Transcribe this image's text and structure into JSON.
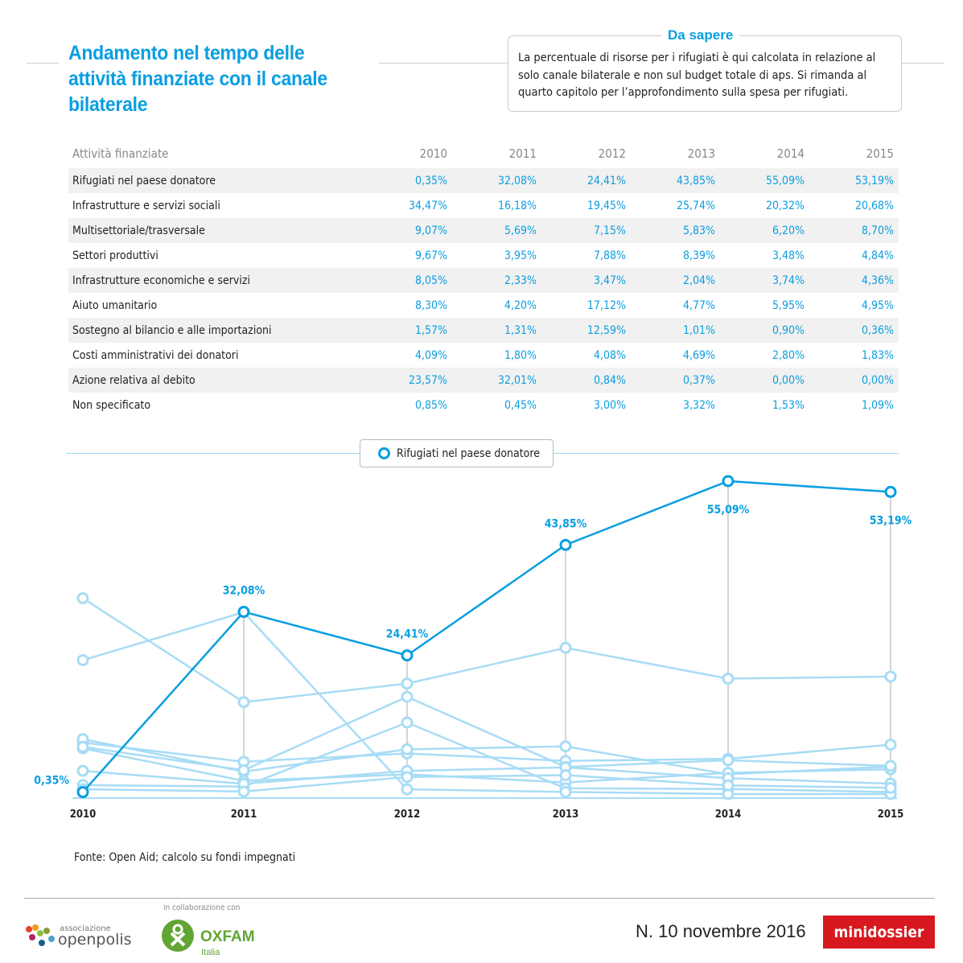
{
  "header": {
    "title": "Andamento nel tempo delle attività finanziate con il canale bilaterale",
    "note_title": "Da sapere",
    "note_text": "La percentuale di risorse per i rifugiati è qui calcolata in relazione al solo canale bilaterale e non sul budget totale di aps. Si rimanda al quarto capitolo per l’approfondimento sulla spesa per rifugiati."
  },
  "table": {
    "header": [
      "Attività finanziate",
      "2010",
      "2011",
      "2012",
      "2013",
      "2014",
      "2015"
    ],
    "rows": [
      [
        "Rifugiati nel paese donatore",
        "0,35%",
        "32,08%",
        "24,41%",
        "43,85%",
        "55,09%",
        "53,19%"
      ],
      [
        "Infrastrutture e servizi sociali",
        "34,47%",
        "16,18%",
        "19,45%",
        "25,74%",
        "20,32%",
        "20,68%"
      ],
      [
        "Multisettoriale/trasversale",
        "9,07%",
        "5,69%",
        "7,15%",
        "5,83%",
        "6,20%",
        "8,70%"
      ],
      [
        "Settori produttivi",
        "9,67%",
        "3,95%",
        "7,88%",
        "8,39%",
        "3,48%",
        "4,84%"
      ],
      [
        "Infrastrutture economiche e servizi",
        "8,05%",
        "2,33%",
        "3,47%",
        "2,04%",
        "3,74%",
        "4,36%"
      ],
      [
        "Aiuto umanitario",
        "8,30%",
        "4,20%",
        "17,12%",
        "4,77%",
        "5,95%",
        "4,95%"
      ],
      [
        "Sostegno al bilancio e alle importazioni",
        "1,57%",
        "1,31%",
        "12,59%",
        "1,01%",
        "0,90%",
        "0,36%"
      ],
      [
        "Costi amministrativi dei donatori",
        "4,09%",
        "1,80%",
        "4,08%",
        "4,69%",
        "2,80%",
        "1,83%"
      ],
      [
        "Azione relativa al debito",
        "23,57%",
        "32,01%",
        "0,84%",
        "0,37%",
        "0,00%",
        "0,00%"
      ],
      [
        "Non specificato",
        "0,85%",
        "0,45%",
        "3,00%",
        "3,32%",
        "1,53%",
        "1,09%"
      ]
    ]
  },
  "chart_data": {
    "type": "line",
    "x": [
      "2010",
      "2011",
      "2012",
      "2013",
      "2014",
      "2015"
    ],
    "ylim": [
      0,
      55.09
    ],
    "highlight_color": "#0a9ee0",
    "other_color": "#a8dcf5",
    "highlight": {
      "name": "Rifugiati nel paese donatore",
      "values": [
        0.35,
        32.08,
        24.41,
        43.85,
        55.09,
        53.19
      ],
      "labels": [
        "0,35%",
        "32,08%",
        "24,41%",
        "43,85%",
        "55,09%",
        "53,19%"
      ]
    },
    "others": [
      [
        34.47,
        16.18,
        19.45,
        25.74,
        20.32,
        20.68
      ],
      [
        9.07,
        5.69,
        7.15,
        5.83,
        6.2,
        8.7
      ],
      [
        9.67,
        3.95,
        7.88,
        8.39,
        3.48,
        4.84
      ],
      [
        8.05,
        2.33,
        3.47,
        2.04,
        3.74,
        4.36
      ],
      [
        8.3,
        4.2,
        17.12,
        4.77,
        5.95,
        4.95
      ],
      [
        1.57,
        1.31,
        12.59,
        1.01,
        0.9,
        0.36
      ],
      [
        4.09,
        1.8,
        4.08,
        4.69,
        2.8,
        1.83
      ],
      [
        23.57,
        32.01,
        0.84,
        0.37,
        0.0,
        0.0
      ],
      [
        0.85,
        0.45,
        3.0,
        3.32,
        1.53,
        1.09
      ]
    ],
    "legend": "Rifugiati nel paese donatore"
  },
  "footer": {
    "source": "Fonte: Open Aid; calcolo su fondi impegnati",
    "collab": "in collaborazione con",
    "openpolis_small": "associazione",
    "openpolis": "openpolis",
    "oxfam": "OXFAM",
    "oxfam_sub": "Italia",
    "issue": "N. 10  novembre 2016",
    "badge": "minidossier"
  }
}
